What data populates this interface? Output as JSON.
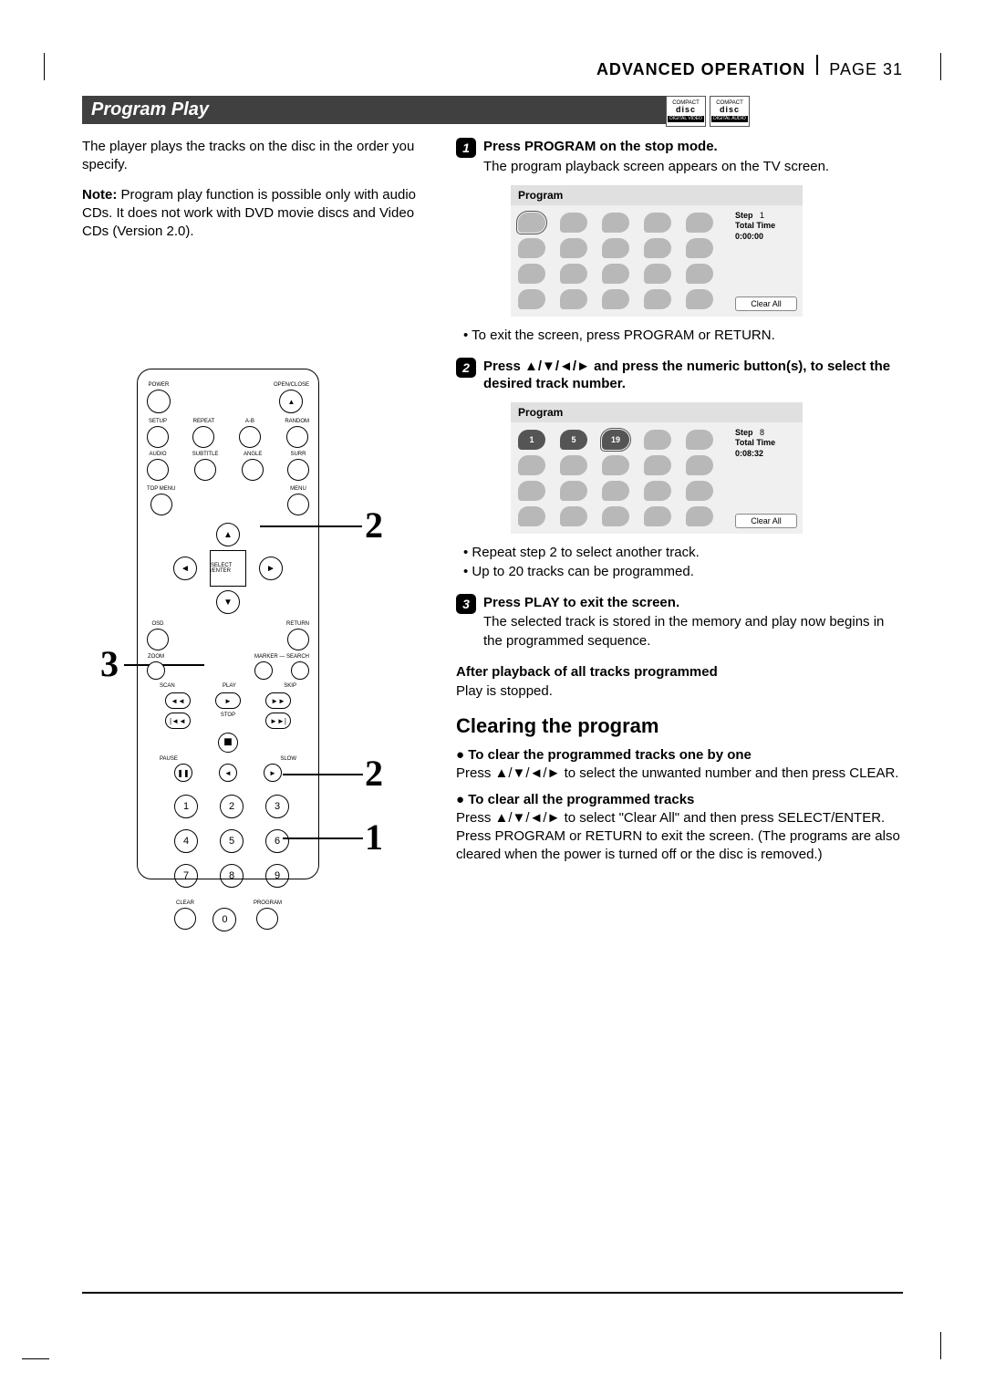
{
  "header": {
    "section": "ADVANCED OPERATION",
    "page_label": "PAGE 31"
  },
  "section_title": "Program Play",
  "disc_logos": [
    {
      "top": "COMPACT",
      "mid": "disc",
      "sub": "DIGITAL VIDEO"
    },
    {
      "top": "COMPACT",
      "mid": "disc",
      "sub": "DIGITAL AUDIO"
    }
  ],
  "intro": "The player plays the tracks on the disc in the order you specify.",
  "note_label": "Note:",
  "note_text": " Program play function is possible only with audio CDs. It does not work with DVD movie discs and Video CDs (Version 2.0).",
  "remote": {
    "row1": [
      "POWER",
      "OPEN/CLOSE"
    ],
    "row2": [
      "SETUP",
      "REPEAT",
      "A-B",
      "RANDOM"
    ],
    "row3": [
      "AUDIO",
      "SUBTITLE",
      "ANGLE",
      "SURR"
    ],
    "row4": [
      "TOP MENU",
      "MENU"
    ],
    "nav_center": "SELECT /ENTER",
    "row5": [
      "OSD",
      "RETURN"
    ],
    "row6": [
      "ZOOM",
      "MARKER — SEARCH"
    ],
    "row7_labels": [
      "SCAN",
      "PLAY",
      "SKIP"
    ],
    "stop_label": "STOP",
    "row8_labels": [
      "PAUSE",
      "SLOW"
    ],
    "numbers": [
      "1",
      "2",
      "3",
      "4",
      "5",
      "6",
      "7",
      "8",
      "9"
    ],
    "bottom": [
      "CLEAR",
      "0",
      "PROGRAM"
    ]
  },
  "callouts": {
    "c2a": "2",
    "c3": "3",
    "c2b": "2",
    "c1": "1"
  },
  "steps": [
    {
      "num": "1",
      "title": "Press PROGRAM on the stop mode.",
      "body": "The program playback screen appears on the TV screen.",
      "screen": {
        "title": "Program",
        "slots": [
          [
            "",
            "",
            "",
            "",
            ""
          ],
          [
            "",
            "",
            "",
            "",
            ""
          ],
          [
            "",
            "",
            "",
            "",
            ""
          ],
          [
            "",
            "",
            "",
            "",
            ""
          ]
        ],
        "selected": [
          0,
          0
        ],
        "step_label": "Step",
        "step_val": "1",
        "total_label": "Total Time",
        "total_val": "0:00:00",
        "clear": "Clear All"
      },
      "after_bullets": [
        "To exit the screen, press PROGRAM or RETURN."
      ]
    },
    {
      "num": "2",
      "title_parts": [
        "Press ",
        "▲/▼/◄/►",
        " and press the numeric button(s), to select the desired track number."
      ],
      "screen": {
        "title": "Program",
        "slots": [
          [
            "1",
            "5",
            "19",
            "",
            ""
          ],
          [
            "",
            "",
            "",
            "",
            ""
          ],
          [
            "",
            "",
            "",
            "",
            ""
          ],
          [
            "",
            "",
            "",
            "",
            ""
          ]
        ],
        "selected": [
          0,
          2
        ],
        "step_label": "Step",
        "step_val": "8",
        "total_label": "Total Time",
        "total_val": "0:08:32",
        "clear": "Clear All"
      },
      "after_bullets": [
        "Repeat step 2 to select another track.",
        "Up to 20 tracks can be programmed."
      ]
    },
    {
      "num": "3",
      "title": "Press PLAY to exit the screen.",
      "body": "The selected track is stored in the memory and play now begins in the programmed sequence."
    }
  ],
  "after_playback": {
    "heading": "After playback of all tracks programmed",
    "body": "Play is stopped."
  },
  "clearing": {
    "heading": "Clearing the program",
    "items": [
      {
        "title": "To clear the programmed tracks one by one",
        "body_parts": [
          "Press ",
          "▲/▼/◄/►",
          " to select the unwanted number and then press CLEAR."
        ]
      },
      {
        "title": "To clear all the programmed tracks",
        "body_parts": [
          "Press ",
          "▲/▼/◄/►",
          " to select \"Clear All\" and then press SELECT/ENTER. Press PROGRAM or RETURN to exit the screen.  (The programs are also cleared when the power is turned off or the disc is removed.)"
        ]
      }
    ]
  }
}
